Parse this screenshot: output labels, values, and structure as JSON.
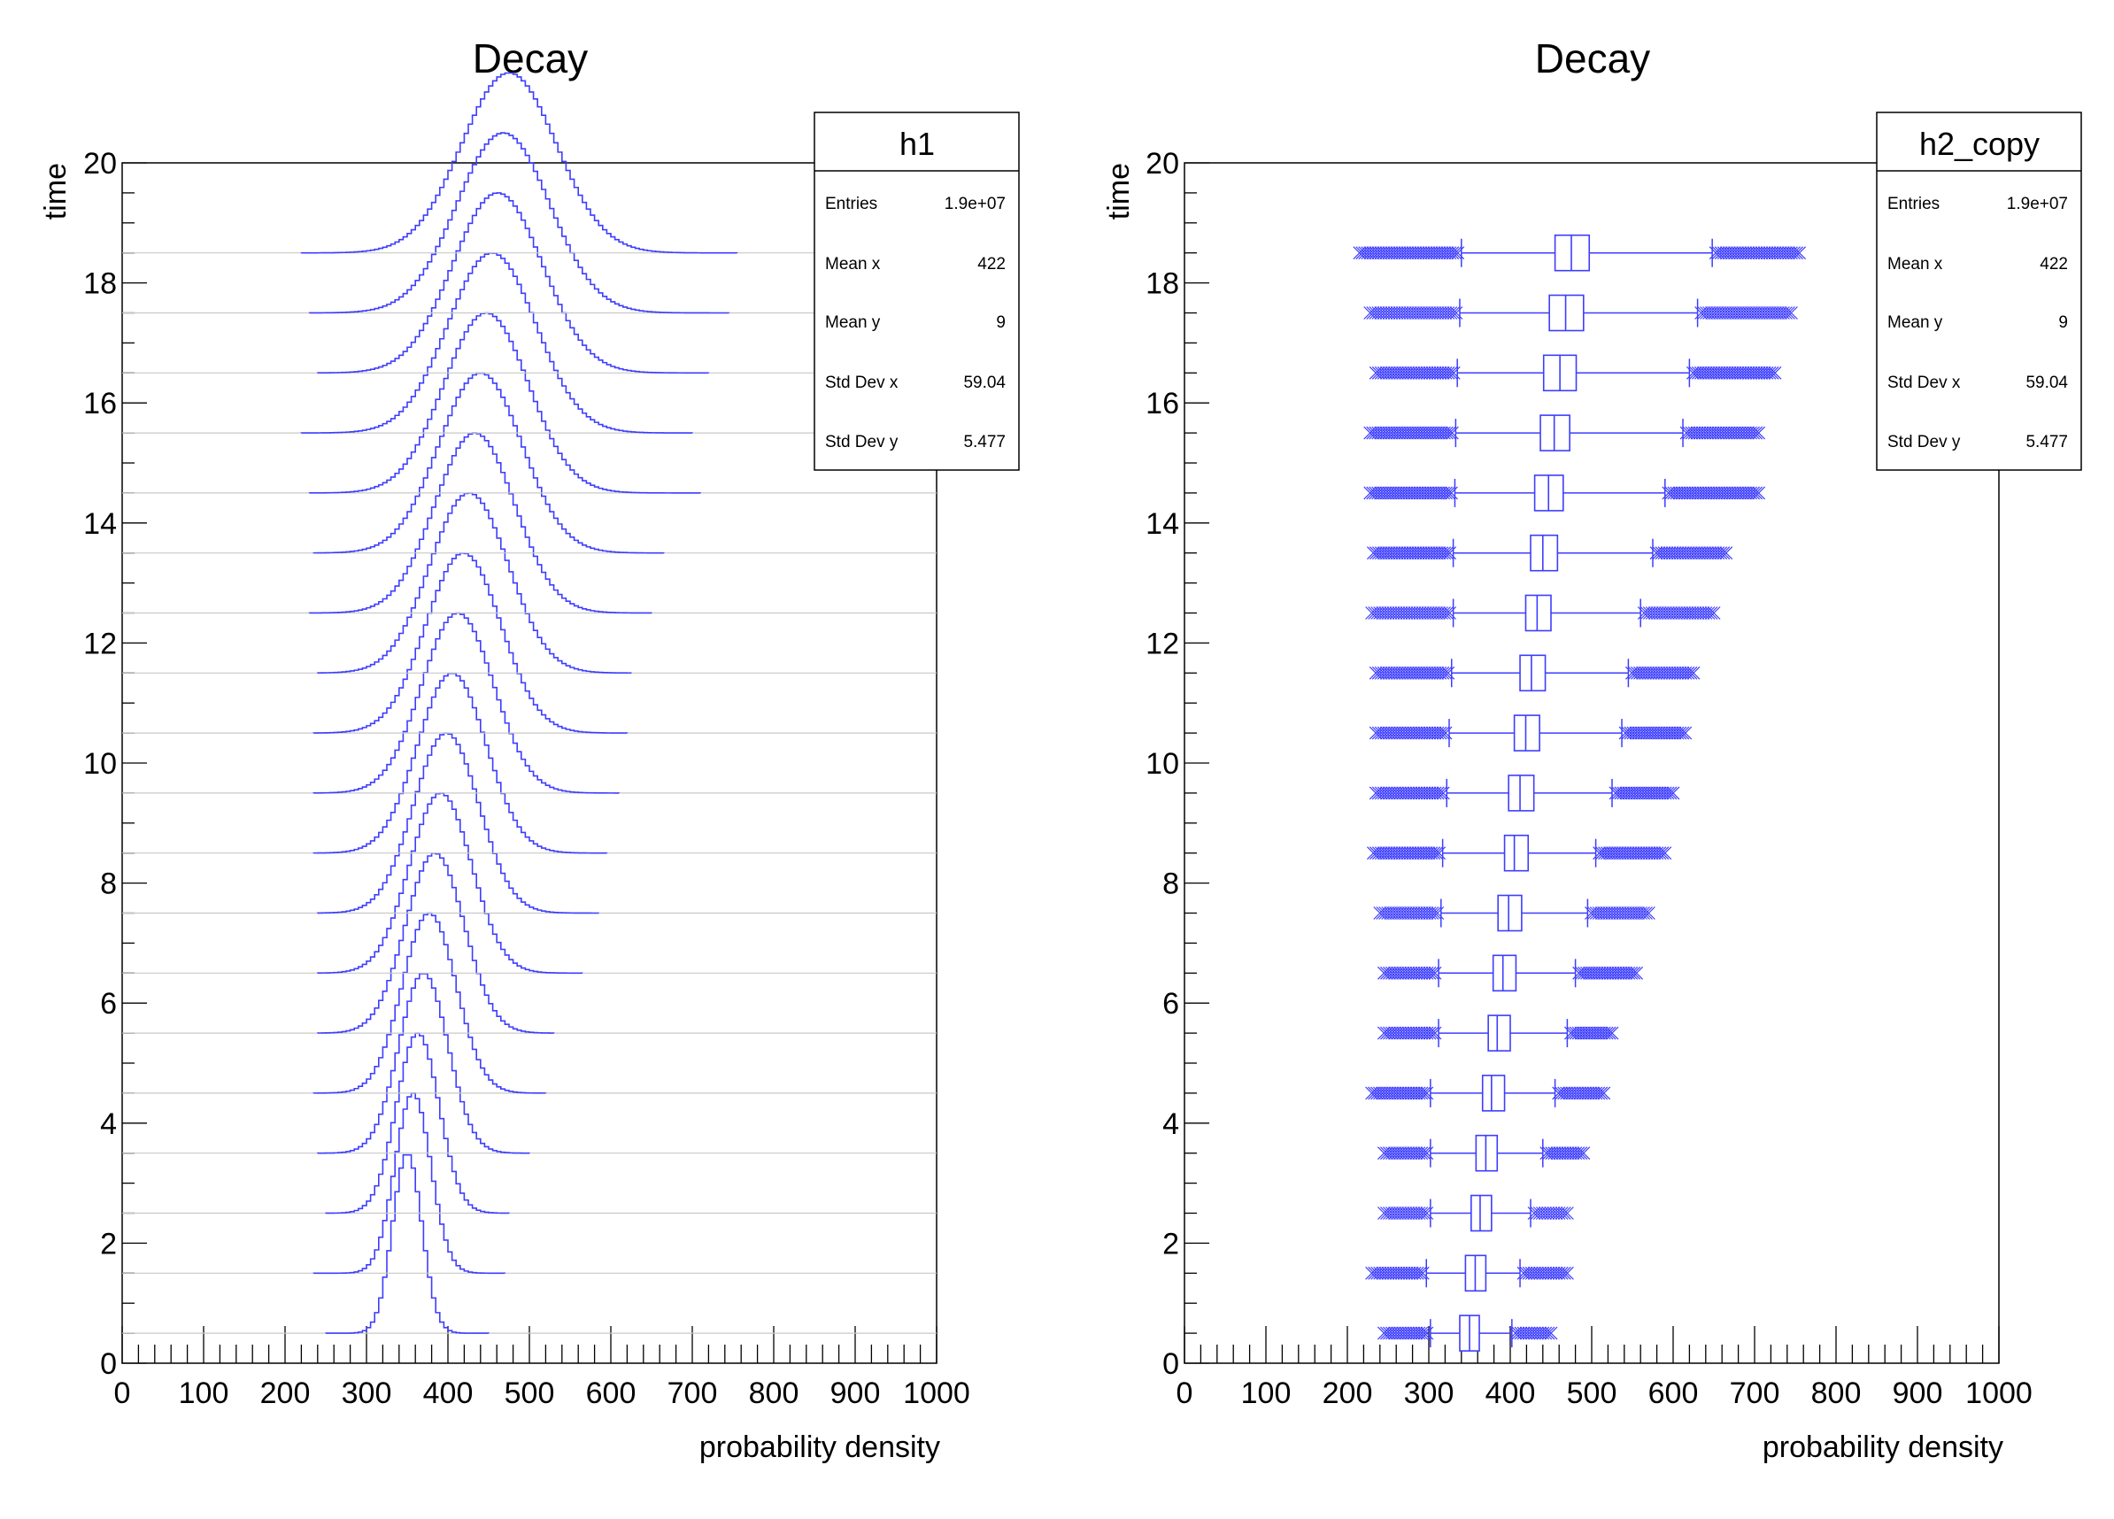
{
  "chart_data": [
    {
      "type": "ridgeline-histogram",
      "title": "Decay",
      "xlabel": "probability density",
      "ylabel": "time",
      "xlim": [
        0,
        1000
      ],
      "ylim": [
        0,
        20
      ],
      "x_ticks": [
        "0",
        "100",
        "200",
        "300",
        "400",
        "500",
        "600",
        "700",
        "800",
        "900",
        "1000"
      ],
      "y_ticks": [
        "0",
        "2",
        "4",
        "6",
        "8",
        "10",
        "12",
        "14",
        "16",
        "18",
        "20"
      ],
      "series_color": "#3d3dff",
      "time_slices": [
        0.5,
        1.5,
        2.5,
        3.5,
        4.5,
        5.5,
        6.5,
        7.5,
        8.5,
        9.5,
        10.5,
        11.5,
        12.5,
        13.5,
        14.5,
        15.5,
        16.5,
        17.5,
        18.5
      ],
      "peak_x": [
        350,
        357,
        363,
        370,
        377,
        384,
        391,
        398,
        405,
        412,
        419,
        426,
        433,
        440,
        447,
        454,
        461,
        468,
        475
      ],
      "sigma_x": [
        18,
        22,
        26,
        30,
        33,
        36,
        38,
        40,
        42,
        44,
        46,
        48,
        49,
        51,
        52,
        54,
        55,
        57,
        58
      ],
      "range_min": [
        250,
        235,
        250,
        240,
        235,
        240,
        240,
        240,
        235,
        235,
        235,
        240,
        230,
        235,
        230,
        220,
        240,
        230,
        220
      ],
      "range_max": [
        450,
        470,
        475,
        500,
        520,
        530,
        565,
        585,
        595,
        610,
        620,
        625,
        650,
        665,
        710,
        700,
        720,
        745,
        755
      ],
      "stats": {
        "name": "h1",
        "rows": [
          {
            "label": "Entries",
            "value": "1.9e+07"
          },
          {
            "label": "Mean x",
            "value": "422"
          },
          {
            "label": "Mean y",
            "value": "9"
          },
          {
            "label": "Std Dev x",
            "value": "59.04"
          },
          {
            "label": "Std Dev y",
            "value": "5.477"
          }
        ]
      }
    },
    {
      "type": "box",
      "title": "Decay",
      "xlabel": "probability density",
      "ylabel": "time",
      "xlim": [
        0,
        1000
      ],
      "ylim": [
        0,
        20
      ],
      "x_ticks": [
        "0",
        "100",
        "200",
        "300",
        "400",
        "500",
        "600",
        "700",
        "800",
        "900",
        "1000"
      ],
      "y_ticks": [
        "0",
        "2",
        "4",
        "6",
        "8",
        "10",
        "12",
        "14",
        "16",
        "18",
        "20"
      ],
      "series_color": "#3d3dff",
      "time_slices": [
        0.5,
        1.5,
        2.5,
        3.5,
        4.5,
        5.5,
        6.5,
        7.5,
        8.5,
        9.5,
        10.5,
        11.5,
        12.5,
        13.5,
        14.5,
        15.5,
        16.5,
        17.5,
        18.5
      ],
      "q1": [
        338,
        345,
        352,
        358,
        366,
        373,
        379,
        385,
        393,
        398,
        405,
        412,
        419,
        425,
        430,
        437,
        441,
        448,
        455
      ],
      "median": [
        350,
        357,
        363,
        370,
        377,
        384,
        391,
        398,
        405,
        412,
        419,
        426,
        433,
        440,
        447,
        454,
        461,
        468,
        475
      ],
      "q3": [
        362,
        370,
        377,
        384,
        393,
        400,
        407,
        414,
        422,
        429,
        436,
        443,
        450,
        458,
        465,
        473,
        481,
        490,
        497
      ],
      "whisker_low": [
        302,
        297,
        302,
        302,
        302,
        312,
        312,
        315,
        317,
        322,
        325,
        328,
        330,
        330,
        332,
        333,
        335,
        338,
        340
      ],
      "whisker_high": [
        402,
        412,
        425,
        440,
        455,
        470,
        480,
        495,
        505,
        525,
        537,
        545,
        560,
        575,
        590,
        612,
        620,
        630,
        648
      ],
      "outlier_low": [
        245,
        230,
        245,
        245,
        230,
        245,
        245,
        240,
        232,
        235,
        235,
        235,
        230,
        232,
        228,
        228,
        235,
        228,
        215
      ],
      "outlier_high": [
        450,
        470,
        470,
        490,
        515,
        525,
        555,
        570,
        590,
        600,
        615,
        625,
        650,
        665,
        705,
        705,
        725,
        745,
        755
      ],
      "stats": {
        "name": "h2_copy",
        "rows": [
          {
            "label": "Entries",
            "value": "1.9e+07"
          },
          {
            "label": "Mean x",
            "value": "422"
          },
          {
            "label": "Mean y",
            "value": "9"
          },
          {
            "label": "Std Dev x",
            "value": "59.04"
          },
          {
            "label": "Std Dev y",
            "value": "5.477"
          }
        ]
      }
    }
  ]
}
